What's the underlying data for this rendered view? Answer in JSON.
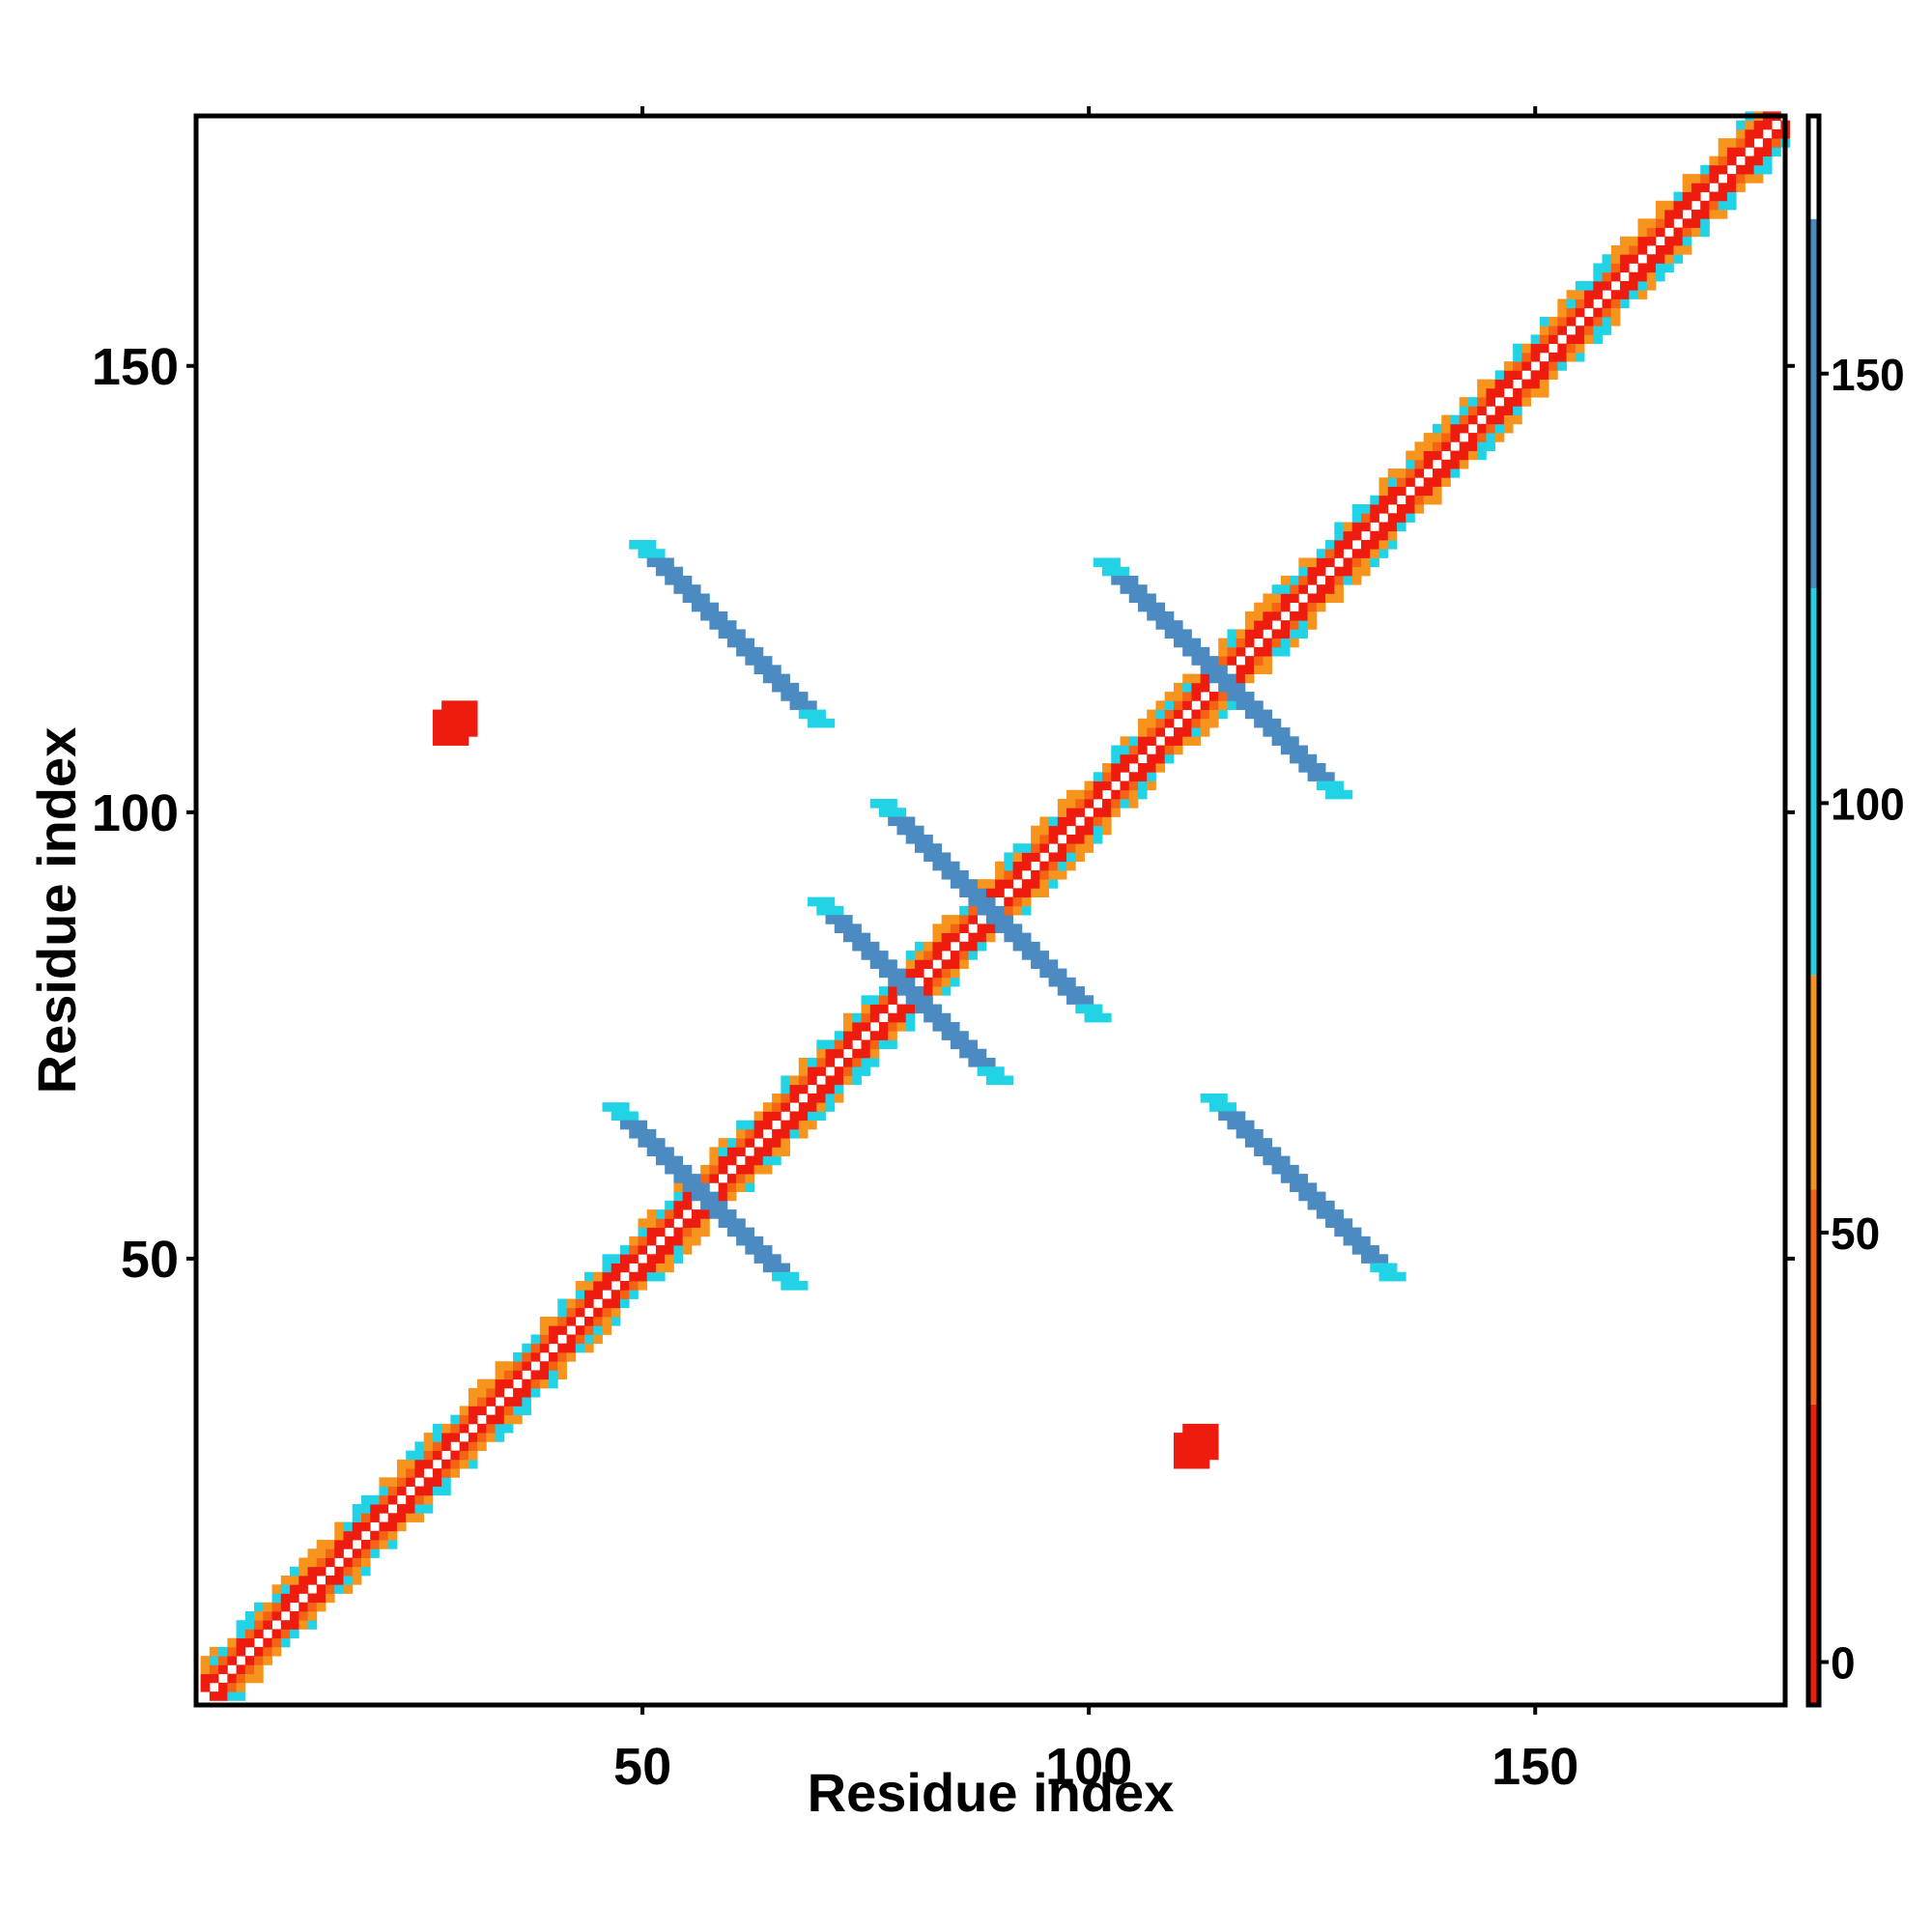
{
  "chart_data": {
    "type": "heatmap",
    "title": "",
    "xlabel": "Residue index",
    "ylabel": "Residue index",
    "xlim": [
      1,
      178
    ],
    "ylim": [
      1,
      178
    ],
    "x_ticks": [
      "50",
      "100",
      "150"
    ],
    "y_ticks": [
      "50",
      "100",
      "150"
    ],
    "x_tick_values": [
      50,
      100,
      150
    ],
    "y_tick_values": [
      50,
      100,
      150
    ],
    "colorbar": {
      "range": [
        -5,
        180
      ],
      "ticks": [
        "0",
        "50",
        "100",
        "150"
      ],
      "tick_values": [
        0,
        50,
        100,
        150
      ],
      "bands": [
        {
          "from": -5,
          "to": 30,
          "color": "#ee1c0e"
        },
        {
          "from": 30,
          "to": 55,
          "color": "#f56414"
        },
        {
          "from": 55,
          "to": 80,
          "color": "#f7941d"
        },
        {
          "from": 80,
          "to": 125,
          "color": "#22d3e6"
        },
        {
          "from": 125,
          "to": 168,
          "color": "#4b8bc2"
        },
        {
          "from": 168,
          "to": 180,
          "color": "#ffffff"
        }
      ]
    },
    "grid": false,
    "legend": "right colorbar",
    "regions": [
      {
        "kind": "diagonal",
        "from": 1,
        "to": 178,
        "note": "helical/strand near-diagonal band"
      },
      {
        "kind": "antidiagonal",
        "center": [
          57,
          57
        ],
        "half_len": 10,
        "value": 140
      },
      {
        "kind": "antidiagonal",
        "center": [
          80,
          80
        ],
        "half_len": 10,
        "value": 140
      },
      {
        "kind": "antidiagonal",
        "center": [
          89,
          89
        ],
        "half_len": 12,
        "value": 140
      },
      {
        "kind": "antidiagonal",
        "center": [
          115,
          115
        ],
        "half_len": 13,
        "value": 140
      },
      {
        "kind": "antidiagonal",
        "center": [
          60,
          120
        ],
        "half_len": 10,
        "value": 135
      },
      {
        "kind": "antidiagonal",
        "center": [
          124,
          58
        ],
        "half_len": 10,
        "value": 135
      },
      {
        "kind": "blob",
        "center": [
          29,
          110
        ],
        "size": 4,
        "value": 10
      },
      {
        "kind": "blob",
        "center": [
          112,
          29
        ],
        "size": 4,
        "value": 10
      }
    ]
  },
  "colors": {
    "red": "#ee1c0e",
    "red_orange": "#f56414",
    "orange": "#f7941d",
    "cyan": "#22d3e6",
    "steel_blue": "#4b8bc2"
  }
}
